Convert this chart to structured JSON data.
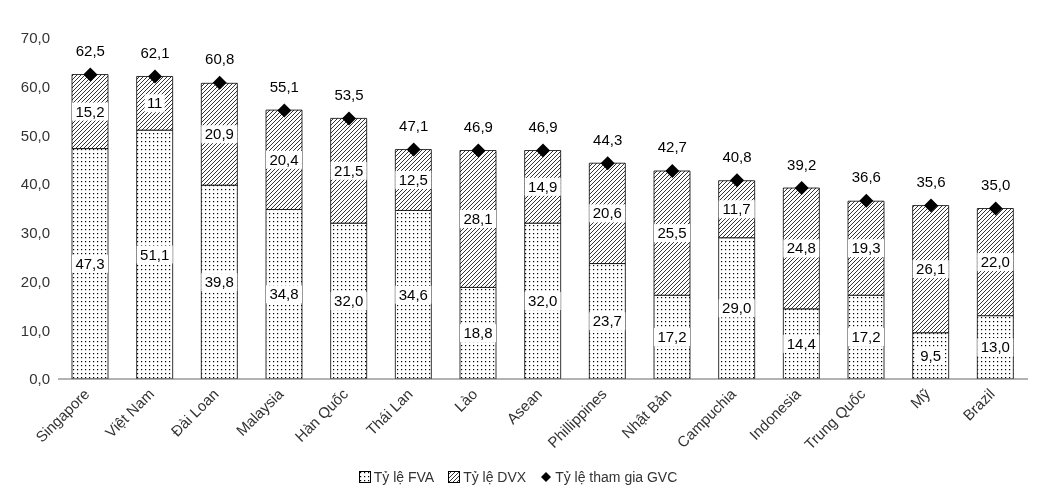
{
  "chart_data": {
    "type": "bar",
    "stacked": true,
    "legend": "bottom",
    "grid": false,
    "categories": [
      "Singapore",
      "Việt Nam",
      "Đài Loan",
      "Malaysia",
      "Hàn Quốc",
      "Thái Lan",
      "Lào",
      "Asean",
      "Phillippines",
      "Nhật Bản",
      "Campuchia",
      "Indonesia",
      "Trung Quốc",
      "Mỹ",
      "Brazil"
    ],
    "ylim": [
      0,
      70
    ],
    "yticks": [
      {
        "value": 0,
        "label": "0,0"
      },
      {
        "value": 10,
        "label": "10,0"
      },
      {
        "value": 20,
        "label": "20,0"
      },
      {
        "value": 30,
        "label": "30,0"
      },
      {
        "value": 40,
        "label": "40,0"
      },
      {
        "value": 50,
        "label": "50,0"
      },
      {
        "value": 60,
        "label": "60,0"
      },
      {
        "value": 70,
        "label": "70,0"
      }
    ],
    "series": [
      {
        "name": "Tỷ lệ FVA",
        "color": "#000000",
        "values": [
          47.3,
          51.1,
          39.8,
          34.8,
          32.0,
          34.6,
          18.8,
          32.0,
          23.7,
          17.2,
          29.0,
          14.4,
          17.2,
          9.5,
          13.0
        ],
        "value_labels": [
          "47,3",
          "51,1",
          "39,8",
          "34,8",
          "32,0",
          "34,6",
          "18,8",
          "32,0",
          "23,7",
          "17,2",
          "29,0",
          "14,4",
          "17,2",
          "9,5",
          "13,0"
        ]
      },
      {
        "name": "Tỷ lệ DVX",
        "color": "#000000",
        "values": [
          15.2,
          11,
          20.9,
          20.4,
          21.5,
          12.5,
          28.1,
          14.9,
          20.6,
          25.5,
          11.7,
          24.8,
          19.3,
          26.1,
          22.0
        ],
        "value_labels": [
          "15,2",
          "11",
          "20,9",
          "20,4",
          "21,5",
          "12,5",
          "28,1",
          "14,9",
          "20,6",
          "25,5",
          "11,7",
          "24,8",
          "19,3",
          "26,1",
          "22,0"
        ]
      },
      {
        "name": "Tỷ lệ tham gia GVC",
        "type": "scatter",
        "marker": "diamond",
        "color": "#000000",
        "values": [
          62.5,
          62.1,
          60.8,
          55.1,
          53.5,
          47.1,
          46.9,
          46.9,
          44.3,
          42.7,
          40.8,
          39.2,
          36.6,
          35.6,
          35.0
        ],
        "value_labels": [
          "62,5",
          "62,1",
          "60,8",
          "55,1",
          "53,5",
          "47,1",
          "46,9",
          "46,9",
          "44,3",
          "42,7",
          "40,8",
          "39,2",
          "36,6",
          "35,6",
          "35,0"
        ]
      }
    ]
  }
}
